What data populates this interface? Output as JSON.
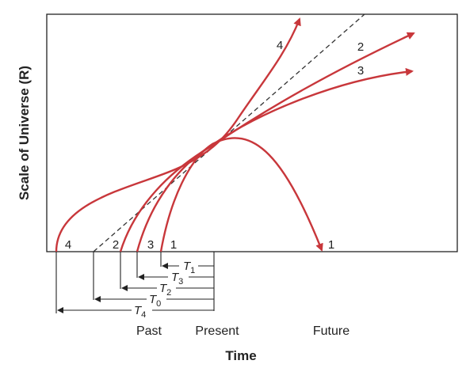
{
  "y_axis_label": "Scale of Universe (R)",
  "x_axis_label": "Time",
  "time_labels": {
    "past": "Past",
    "present": "Present",
    "future": "Future"
  },
  "curve_labels": {
    "c1": "1",
    "c2": "2",
    "c3": "3",
    "c4": "4"
  },
  "interval_labels": {
    "t1": {
      "main": "T",
      "sub": "1"
    },
    "t3": {
      "main": "T",
      "sub": "3"
    },
    "t2": {
      "main": "T",
      "sub": "2"
    },
    "t0": {
      "main": "T",
      "sub": "0"
    },
    "t4": {
      "main": "T",
      "sub": "4"
    }
  },
  "colors": {
    "curve": "#c8373b",
    "axis": "#222222",
    "dashed": "#333333",
    "frame": "#222222"
  }
}
